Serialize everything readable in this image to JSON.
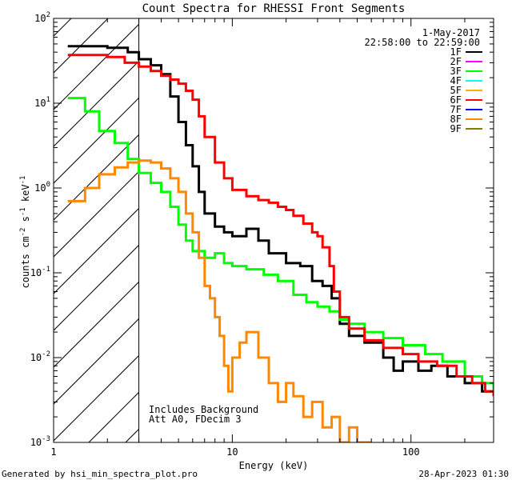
{
  "chart_data": {
    "type": "line",
    "title": "Count Spectra for RHESSI Front Segments",
    "xlabel": "Energy (keV)",
    "ylabel": {
      "base": "counts cm",
      "exp1": "-2",
      "mid1": " s",
      "exp2": "-1",
      "mid2": " keV",
      "exp3": "-1"
    },
    "xscale": "log",
    "yscale": "log",
    "xlim": [
      1,
      290
    ],
    "ylim": [
      0.001,
      100
    ],
    "x_major_ticks": [
      {
        "value": 1,
        "label": "1"
      },
      {
        "value": 10,
        "label": "10"
      },
      {
        "value": 100,
        "label": "100"
      }
    ],
    "y_major_ticks": [
      {
        "value": 0.001,
        "base": "10",
        "exp": "-3"
      },
      {
        "value": 0.01,
        "base": "10",
        "exp": "-2"
      },
      {
        "value": 0.1,
        "base": "10",
        "exp": "-1"
      },
      {
        "value": 1,
        "base": "10",
        "exp": "0"
      },
      {
        "value": 10,
        "base": "10",
        "exp": "1"
      },
      {
        "value": 100,
        "base": "10",
        "exp": "2"
      }
    ],
    "date": "1-May-2017",
    "time_range": "22:58:00 to 22:59:00",
    "legend_position": "top-right",
    "hatched_region": {
      "x_from": 1,
      "x_to": 3,
      "note": "low-energy region excluded (hatched)"
    },
    "annotations": [
      "Includes Background",
      "Att A0, FDecim 3"
    ],
    "series": [
      {
        "name": "1F",
        "color": "#000000",
        "points": [
          [
            1.2,
            47
          ],
          [
            1.5,
            47
          ],
          [
            2,
            45
          ],
          [
            2.6,
            40
          ],
          [
            3,
            33
          ],
          [
            3.5,
            28
          ],
          [
            4,
            22
          ],
          [
            4.5,
            12
          ],
          [
            5,
            6
          ],
          [
            5.5,
            3.2
          ],
          [
            6,
            1.8
          ],
          [
            6.5,
            0.9
          ],
          [
            7,
            0.5
          ],
          [
            8,
            0.35
          ],
          [
            9,
            0.3
          ],
          [
            10,
            0.27
          ],
          [
            12,
            0.33
          ],
          [
            14,
            0.24
          ],
          [
            16,
            0.17
          ],
          [
            20,
            0.13
          ],
          [
            24,
            0.12
          ],
          [
            28,
            0.08
          ],
          [
            32,
            0.07
          ],
          [
            36,
            0.05
          ],
          [
            40,
            0.025
          ],
          [
            45,
            0.018
          ],
          [
            55,
            0.015
          ],
          [
            70,
            0.01
          ],
          [
            80,
            0.007
          ],
          [
            90,
            0.009
          ],
          [
            110,
            0.007
          ],
          [
            130,
            0.008
          ],
          [
            160,
            0.006
          ],
          [
            200,
            0.005
          ],
          [
            250,
            0.004
          ],
          [
            290,
            0.004
          ]
        ]
      },
      {
        "name": "2F",
        "color": "#ff00ff",
        "points": []
      },
      {
        "name": "3F",
        "color": "#00ff00",
        "points": [
          [
            1.2,
            11.5
          ],
          [
            1.5,
            8
          ],
          [
            1.8,
            4.7
          ],
          [
            2.2,
            3.4
          ],
          [
            2.6,
            2.2
          ],
          [
            3,
            1.5
          ],
          [
            3.5,
            1.15
          ],
          [
            4,
            0.9
          ],
          [
            4.5,
            0.6
          ],
          [
            5,
            0.37
          ],
          [
            5.5,
            0.24
          ],
          [
            6,
            0.18
          ],
          [
            7,
            0.15
          ],
          [
            8,
            0.17
          ],
          [
            9,
            0.13
          ],
          [
            10,
            0.12
          ],
          [
            12,
            0.11
          ],
          [
            15,
            0.095
          ],
          [
            18,
            0.08
          ],
          [
            22,
            0.055
          ],
          [
            26,
            0.045
          ],
          [
            30,
            0.04
          ],
          [
            35,
            0.035
          ],
          [
            40,
            0.028
          ],
          [
            45,
            0.025
          ],
          [
            55,
            0.02
          ],
          [
            70,
            0.017
          ],
          [
            90,
            0.014
          ],
          [
            120,
            0.011
          ],
          [
            150,
            0.009
          ],
          [
            200,
            0.006
          ],
          [
            250,
            0.005
          ],
          [
            290,
            0.004
          ]
        ]
      },
      {
        "name": "4F",
        "color": "#00ffff",
        "points": []
      },
      {
        "name": "5F",
        "color": "#ffb000",
        "points": []
      },
      {
        "name": "6F",
        "color": "#ff0000",
        "points": [
          [
            1.2,
            37
          ],
          [
            1.5,
            37
          ],
          [
            2,
            35
          ],
          [
            2.5,
            30
          ],
          [
            3,
            27
          ],
          [
            3.5,
            24
          ],
          [
            4,
            21
          ],
          [
            4.5,
            19
          ],
          [
            5,
            17
          ],
          [
            5.5,
            14
          ],
          [
            6,
            11
          ],
          [
            6.5,
            7
          ],
          [
            7,
            4
          ],
          [
            8,
            2
          ],
          [
            9,
            1.3
          ],
          [
            10,
            0.95
          ],
          [
            12,
            0.8
          ],
          [
            14,
            0.72
          ],
          [
            16,
            0.67
          ],
          [
            18,
            0.6
          ],
          [
            20,
            0.55
          ],
          [
            22,
            0.47
          ],
          [
            25,
            0.38
          ],
          [
            28,
            0.3
          ],
          [
            30,
            0.27
          ],
          [
            32,
            0.2
          ],
          [
            35,
            0.12
          ],
          [
            37,
            0.06
          ],
          [
            40,
            0.03
          ],
          [
            45,
            0.022
          ],
          [
            55,
            0.016
          ],
          [
            70,
            0.013
          ],
          [
            90,
            0.011
          ],
          [
            110,
            0.009
          ],
          [
            140,
            0.008
          ],
          [
            180,
            0.006
          ],
          [
            220,
            0.005
          ],
          [
            260,
            0.004
          ],
          [
            290,
            0.0035
          ]
        ]
      },
      {
        "name": "7F",
        "color": "#0000ff",
        "points": []
      },
      {
        "name": "8F",
        "color": "#ff8800",
        "points": [
          [
            1.2,
            0.7
          ],
          [
            1.5,
            1
          ],
          [
            1.8,
            1.45
          ],
          [
            2.2,
            1.75
          ],
          [
            2.6,
            2
          ],
          [
            3,
            2.1
          ],
          [
            3.5,
            2
          ],
          [
            4,
            1.7
          ],
          [
            4.5,
            1.3
          ],
          [
            5,
            0.9
          ],
          [
            5.5,
            0.5
          ],
          [
            6,
            0.3
          ],
          [
            6.5,
            0.15
          ],
          [
            7,
            0.07
          ],
          [
            7.5,
            0.05
          ],
          [
            8,
            0.03
          ],
          [
            8.5,
            0.018
          ],
          [
            9,
            0.008
          ],
          [
            9.5,
            0.004
          ],
          [
            10,
            0.01
          ],
          [
            11,
            0.015
          ],
          [
            12,
            0.02
          ],
          [
            14,
            0.01
          ],
          [
            16,
            0.005
          ],
          [
            18,
            0.003
          ],
          [
            20,
            0.005
          ],
          [
            22,
            0.0035
          ],
          [
            25,
            0.002
          ],
          [
            28,
            0.003
          ],
          [
            32,
            0.0015
          ],
          [
            36,
            0.002
          ],
          [
            40,
            0.001
          ],
          [
            45,
            0.0015
          ],
          [
            50,
            0.001
          ],
          [
            60,
            0.001
          ]
        ]
      },
      {
        "name": "9F",
        "color": "#808000",
        "points": []
      }
    ]
  },
  "footer": {
    "generated_by": "Generated by hsi_min_spectra_plot.pro",
    "timestamp": "28-Apr-2023 01:30"
  }
}
